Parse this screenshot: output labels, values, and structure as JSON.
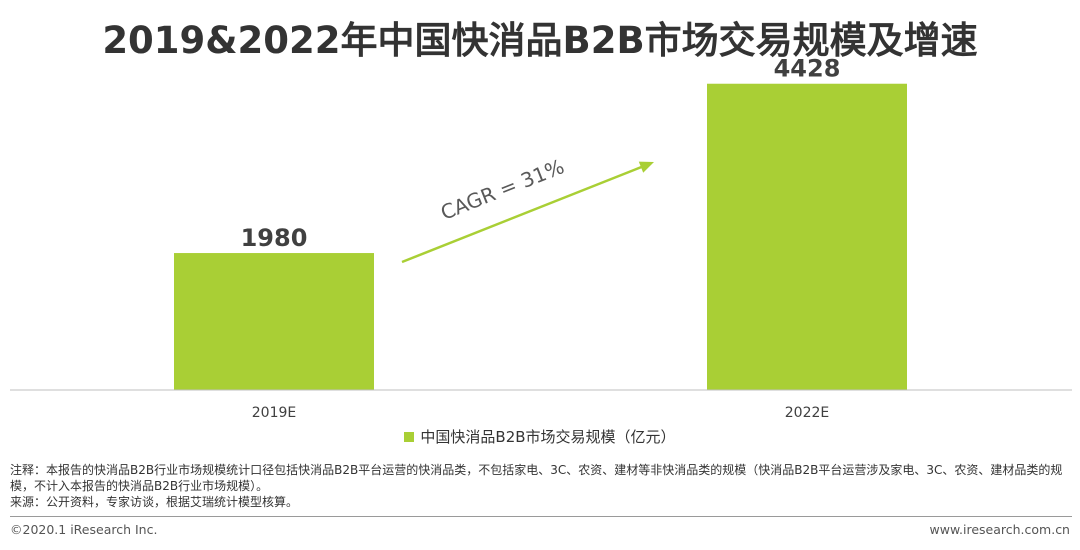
{
  "title": "2019&2022年中国快消品B2B市场交易规模及增速",
  "chart_data": {
    "type": "bar",
    "categories": [
      "2019E",
      "2022E"
    ],
    "series": [
      {
        "name": "中国快消品B2B市场交易规模（亿元）",
        "values": [
          1980,
          4428
        ]
      }
    ],
    "data_labels": [
      "1980",
      "4428"
    ],
    "annotation": "CAGR = 31%",
    "ylim": [
      0,
      4800
    ],
    "grid": false,
    "legend_position": "bottom",
    "colors": {
      "bar": "#a9cf35",
      "arrow": "#a9cf35",
      "axis": "#bfbfbf"
    }
  },
  "notes": [
    "注释：本报告的快消品B2B行业市场规模统计口径包括快消品B2B平台运营的快消品类，不包括家电、3C、农资、建材等非快消品类的规模（快消品B2B平台运营涉及家电、3C、农资、建材品类的规模，不计入本报告的快消品B2B行业市场规模）。",
    "来源：公开资料，专家访谈，根据艾瑞统计模型核算。"
  ],
  "footer": {
    "copyright": "©2020.1 iResearch Inc.",
    "website": "www.iresearch.com.cn"
  }
}
